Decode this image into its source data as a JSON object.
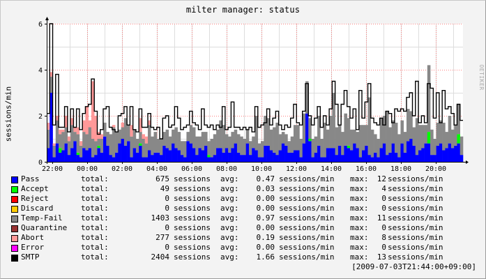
{
  "chart_data": {
    "type": "bar",
    "stacked": true,
    "title": "milter manager: status",
    "ylabel": "sessions/min",
    "vendor_note": "RRDTOOL / TOBI OETIKER",
    "ylim": [
      0,
      6
    ],
    "yticks": [
      "0",
      "2",
      "4",
      "6"
    ],
    "xticks": [
      "22:00",
      "00:00",
      "02:00",
      "04:00",
      "06:00",
      "08:00",
      "10:00",
      "12:00",
      "14:00",
      "16:00",
      "18:00",
      "20:00"
    ],
    "grid": true,
    "colors": {
      "Pass": "#0000ff",
      "Accept": "#00ff00",
      "Reject": "#ff0000",
      "Discard": "#ffcc00",
      "Temp-Fail": "#888888",
      "Quarantine": "#993333",
      "Abort": "#ff9999",
      "Error": "#ff00ff",
      "SMTP": "#000000"
    },
    "series": [
      {
        "name": "Pass",
        "values": [
          0.6,
          3.0,
          0.2,
          0.8,
          0.4,
          0.5,
          0.8,
          0.3,
          0.6,
          0.9,
          0.3,
          0.2,
          0.6,
          0.5,
          0.6,
          0.2,
          0.3,
          0.6,
          0.4,
          1.1,
          0.7,
          0.3,
          0.2,
          0.4,
          0.8,
          1.0,
          0.7,
          0.9,
          0.2,
          0.6,
          0.4,
          0.7,
          0.2,
          0.2,
          0.5,
          0.3,
          0.4,
          0.4,
          0.3,
          0.7,
          0.6,
          0.5,
          0.8,
          0.6,
          0.5,
          0.3,
          0.2,
          0.9,
          0.8,
          0.6,
          0.3,
          0.6,
          0.5,
          0.7,
          0.2,
          0.2,
          0.3,
          0.6,
          0.6,
          0.4,
          0.6,
          0.4,
          0.6,
          0.8,
          0.4,
          0.3,
          0.3,
          0.8,
          0.3,
          0.6,
          0.5,
          0.2,
          0.2,
          0.7,
          0.7,
          0.5,
          0.4,
          0.3,
          0.5,
          0.8,
          0.7,
          0.4,
          0.4,
          0.5,
          0.5,
          0.2,
          0.8,
          2.1,
          0.9,
          0.2,
          0.4,
          0.7,
          0.2,
          0.2,
          0.6,
          0.6,
          0.6,
          0.3,
          0.7,
          0.3,
          0.7,
          0.6,
          0.5,
          0.8,
          0.6,
          0.2,
          0.5,
          0.7,
          0.3,
          0.2,
          0.4,
          0.2,
          0.6,
          0.8,
          0.3,
          0.4,
          0.8,
          0.4,
          0.2,
          0.8,
          0.4,
          0.9,
          1.0,
          0.7,
          0.3,
          0.5,
          0.6,
          0.8,
          0.8,
          0.3,
          0.3,
          0.7,
          0.8,
          0.5,
          0.6,
          0.8,
          0.6,
          0.7,
          0.8,
          0.3
        ]
      },
      {
        "name": "Accept",
        "values": [
          0,
          0,
          0,
          0,
          0.2,
          0,
          0,
          0,
          0,
          0,
          0.1,
          0,
          0,
          0,
          0,
          0,
          0,
          0.1,
          0,
          0,
          0,
          0,
          0,
          0,
          0,
          0,
          0,
          0,
          0,
          0,
          0,
          0.1,
          0,
          0,
          0,
          0,
          0,
          0,
          0,
          0,
          0,
          0,
          0,
          0,
          0,
          0,
          0,
          0,
          0,
          0,
          0,
          0,
          0,
          0,
          0.1,
          0,
          0,
          0,
          0,
          0,
          0,
          0,
          0,
          0,
          0,
          0,
          0,
          0,
          0,
          0,
          0,
          0,
          0,
          0,
          0,
          0,
          0,
          0,
          0,
          0,
          0,
          0,
          0,
          0,
          0,
          0,
          0,
          0,
          0.1,
          0,
          0,
          0,
          0,
          0,
          0,
          0,
          0,
          0,
          0,
          0,
          0,
          0.1,
          0,
          0,
          0,
          0,
          0,
          0,
          0,
          0,
          0,
          0,
          0,
          0,
          0,
          0,
          0,
          0,
          0,
          0,
          0,
          0,
          0,
          0,
          0,
          0,
          0,
          0,
          0.5,
          0,
          0,
          0,
          0,
          0,
          0,
          0,
          0,
          0,
          0.4,
          0
        ]
      },
      {
        "name": "Reject",
        "values": []
      },
      {
        "name": "Discard",
        "values": []
      },
      {
        "name": "Temp-Fail",
        "values": [
          0.8,
          0.7,
          0.5,
          1.0,
          0.6,
          0.8,
          0.7,
          0.6,
          1.0,
          0.4,
          0.8,
          0.5,
          0.7,
          0.7,
          0.9,
          0.8,
          0.6,
          0.3,
          0.6,
          0.6,
          0.6,
          0.9,
          1.3,
          0.9,
          0.6,
          0.5,
          1.2,
          0.7,
          0.9,
          0.8,
          0.6,
          0.5,
          0.8,
          0.6,
          1.1,
          0.8,
          0.9,
          0.6,
          0.7,
          0.6,
          0.8,
          0.6,
          0.6,
          0.9,
          0.8,
          0.6,
          0.7,
          0.4,
          0.8,
          0.9,
          0.8,
          0.5,
          0.8,
          0.6,
          0.6,
          0.8,
          0.9,
          0.8,
          1.2,
          1.2,
          0.6,
          0.7,
          0.7,
          0.6,
          0.8,
          0.8,
          0.7,
          0.6,
          0.6,
          0.5,
          1.5,
          0.6,
          0.7,
          1.3,
          1.2,
          0.9,
          1.1,
          1.4,
          0.7,
          0.5,
          0.5,
          0.5,
          0.7,
          1.1,
          1.1,
          0.8,
          1.3,
          1.4,
          0.9,
          0.8,
          0.7,
          1.3,
          0.8,
          1.5,
          0.8,
          1.4,
          2.4,
          1.2,
          0.9,
          1.0,
          1.4,
          1.2,
          0.9,
          0.6,
          0.7,
          1.4,
          1.1,
          0.9,
          2.5,
          1.2,
          0.8,
          0.8,
          1.3,
          1.2,
          1.9,
          1.1,
          1.0,
          1.3,
          1.0,
          1.0,
          0.9,
          1.4,
          1.2,
          0.8,
          1.6,
          1.1,
          1.0,
          0.8,
          2.9,
          1.1,
          0.7,
          1.0,
          1.0,
          1.2,
          0.7,
          1.2,
          0.8,
          0.9,
          1.3,
          0.8
        ]
      },
      {
        "name": "Quarantine",
        "values": []
      },
      {
        "name": "Abort",
        "values": [
          0.3,
          0.2,
          0.1,
          0.2,
          0.2,
          0.1,
          0.5,
          0.2,
          0.3,
          0.2,
          0.3,
          0.2,
          0.5,
          1.2,
          0.3,
          2.5,
          1.1,
          0.3,
          0.2,
          0,
          0,
          0,
          0.1,
          0,
          0,
          0.2,
          0,
          0,
          0.5,
          0,
          0,
          0.6,
          0.2,
          0.3,
          0.2,
          0,
          0,
          0,
          0,
          0,
          0,
          0,
          0,
          0,
          0,
          0,
          0,
          0,
          0,
          0,
          0,
          0,
          0,
          0,
          0,
          0,
          0,
          0,
          0,
          0,
          0,
          0,
          0,
          0,
          0,
          0,
          0,
          0,
          0,
          0,
          0,
          0,
          0,
          0,
          0,
          0,
          0,
          0,
          0,
          0,
          0,
          0,
          0,
          0,
          0,
          0,
          0,
          0,
          0,
          0,
          0,
          0,
          0,
          0,
          0,
          0,
          0,
          0,
          0,
          0,
          0,
          0,
          0,
          0,
          0,
          0,
          0,
          0,
          0,
          0,
          0,
          0,
          0,
          0,
          0,
          0,
          0,
          0,
          0,
          0,
          0,
          0,
          0,
          0,
          0,
          0,
          0,
          0,
          0,
          0,
          0,
          0,
          0,
          0,
          0,
          0,
          0,
          0,
          0,
          0,
          0,
          0,
          0,
          0,
          0,
          0
        ]
      },
      {
        "name": "Error",
        "values": []
      },
      {
        "name": "SMTP",
        "values": [
          2.1,
          6.0,
          1.6,
          3.8,
          1.5,
          1.5,
          2.4,
          1.3,
          2.3,
          1.5,
          2.3,
          1.4,
          2.1,
          2.4,
          2.5,
          3.6,
          2.2,
          1.2,
          1.4,
          2.3,
          2.4,
          1.5,
          1.4,
          1.3,
          2.0,
          2.1,
          2.4,
          1.6,
          2.4,
          1.4,
          1.3,
          2.3,
          1.5,
          1.5,
          2.1,
          1.5,
          1.4,
          1.5,
          1.0,
          1.9,
          2.0,
          1.5,
          1.6,
          2.4,
          1.9,
          1.4,
          1.5,
          1.6,
          2.2,
          1.7,
          1.6,
          1.4,
          2.3,
          1.6,
          1.5,
          1.6,
          1.4,
          1.6,
          1.5,
          2.4,
          1.4,
          1.5,
          2.6,
          1.5,
          1.5,
          1.4,
          1.5,
          1.4,
          1.5,
          1.3,
          2.4,
          1.5,
          1.6,
          1.7,
          2.3,
          1.6,
          1.9,
          2.2,
          1.6,
          1.4,
          1.6,
          1.5,
          1.9,
          2.5,
          1.7,
          1.6,
          2.2,
          3.4,
          2.0,
          1.6,
          1.9,
          2.4,
          1.5,
          2.0,
          1.6,
          2.3,
          3.5,
          2.5,
          1.6,
          2.5,
          3.1,
          2.4,
          1.9,
          2.3,
          1.4,
          3.1,
          1.9,
          2.6,
          3.4,
          1.9,
          1.7,
          1.6,
          1.9,
          1.6,
          2.2,
          2.1,
          1.7,
          2.3,
          2.2,
          2.3,
          2.2,
          2.8,
          3.0,
          2.0,
          3.5,
          1.7,
          2.0,
          1.7,
          3.4,
          3.2,
          1.9,
          3.0,
          1.7,
          3.1,
          2.3,
          2.4,
          2.1,
          1.6,
          2.5,
          1.8
        ]
      }
    ]
  },
  "legend": [
    {
      "name": "Pass",
      "total": "total:",
      "count": "675",
      "unit": "sessions",
      "avg_label": "avg:",
      "avg": "0.47",
      "avg_unit": "sessions/min",
      "max_label": "max:",
      "max": "12",
      "max_unit": "sessions/min"
    },
    {
      "name": "Accept",
      "total": "total:",
      "count": "49",
      "unit": "sessions",
      "avg_label": "avg:",
      "avg": "0.03",
      "avg_unit": "sessions/min",
      "max_label": "max:",
      "max": "4",
      "max_unit": "sessions/min"
    },
    {
      "name": "Reject",
      "total": "total:",
      "count": "0",
      "unit": "sessions",
      "avg_label": "avg:",
      "avg": "0.00",
      "avg_unit": "sessions/min",
      "max_label": "max:",
      "max": "0",
      "max_unit": "sessions/min"
    },
    {
      "name": "Discard",
      "total": "total:",
      "count": "0",
      "unit": "sessions",
      "avg_label": "avg:",
      "avg": "0.00",
      "avg_unit": "sessions/min",
      "max_label": "max:",
      "max": "0",
      "max_unit": "sessions/min"
    },
    {
      "name": "Temp-Fail",
      "total": "total:",
      "count": "1403",
      "unit": "sessions",
      "avg_label": "avg:",
      "avg": "0.97",
      "avg_unit": "sessions/min",
      "max_label": "max:",
      "max": "11",
      "max_unit": "sessions/min"
    },
    {
      "name": "Quarantine",
      "total": "total:",
      "count": "0",
      "unit": "sessions",
      "avg_label": "avg:",
      "avg": "0.00",
      "avg_unit": "sessions/min",
      "max_label": "max:",
      "max": "0",
      "max_unit": "sessions/min"
    },
    {
      "name": "Abort",
      "total": "total:",
      "count": "277",
      "unit": "sessions",
      "avg_label": "avg:",
      "avg": "0.19",
      "avg_unit": "sessions/min",
      "max_label": "max:",
      "max": "8",
      "max_unit": "sessions/min"
    },
    {
      "name": "Error",
      "total": "total:",
      "count": "0",
      "unit": "sessions",
      "avg_label": "avg:",
      "avg": "0.00",
      "avg_unit": "sessions/min",
      "max_label": "max:",
      "max": "0",
      "max_unit": "sessions/min"
    },
    {
      "name": "SMTP",
      "total": "total:",
      "count": "2404",
      "unit": "sessions",
      "avg_label": "avg:",
      "avg": "1.66",
      "avg_unit": "sessions/min",
      "max_label": "max:",
      "max": "13",
      "max_unit": "sessions/min"
    }
  ],
  "timestamp": "[2009-07-03T21:44:00+09:00]"
}
